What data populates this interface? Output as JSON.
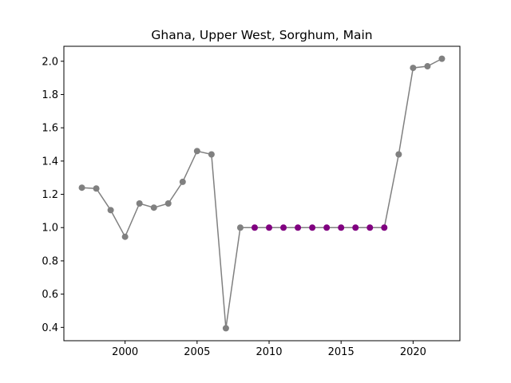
{
  "chart_data": {
    "type": "line",
    "title": "Ghana, Upper West, Sorghum, Main",
    "xlabel": "",
    "ylabel": "",
    "xlim": [
      1995.75,
      2023.25
    ],
    "ylim": [
      0.32,
      2.09
    ],
    "x_ticks": [
      2000,
      2005,
      2010,
      2015,
      2020
    ],
    "x_tick_labels": [
      "2000",
      "2005",
      "2010",
      "2015",
      "2020"
    ],
    "y_ticks": [
      0.4,
      0.6,
      0.8,
      1.0,
      1.2,
      1.4,
      1.6,
      1.8,
      2.0
    ],
    "y_tick_labels": [
      "0.4",
      "0.6",
      "0.8",
      "1.0",
      "1.2",
      "1.4",
      "1.6",
      "1.8",
      "2.0"
    ],
    "grid": false,
    "line_color": "#808080",
    "series": [
      {
        "x": [
          1997,
          1998,
          1999,
          2000,
          2001,
          2002,
          2003,
          2004,
          2005,
          2006,
          2007,
          2008,
          2009,
          2010,
          2011,
          2012,
          2013,
          2014,
          2015,
          2016,
          2017,
          2018,
          2019,
          2020,
          2021,
          2022
        ],
        "values": [
          1.24,
          1.235,
          1.105,
          0.945,
          1.145,
          1.12,
          1.145,
          1.275,
          1.46,
          1.44,
          0.395,
          1.0,
          1.0,
          1.0,
          1.0,
          1.0,
          1.0,
          1.0,
          1.0,
          1.0,
          1.0,
          1.0,
          1.44,
          1.96,
          1.97,
          2.015
        ],
        "point_colors": [
          "#808080",
          "#808080",
          "#808080",
          "#808080",
          "#808080",
          "#808080",
          "#808080",
          "#808080",
          "#808080",
          "#808080",
          "#808080",
          "#808080",
          "#800080",
          "#800080",
          "#800080",
          "#800080",
          "#800080",
          "#800080",
          "#800080",
          "#800080",
          "#800080",
          "#800080",
          "#808080",
          "#808080",
          "#808080",
          "#808080"
        ]
      }
    ]
  }
}
